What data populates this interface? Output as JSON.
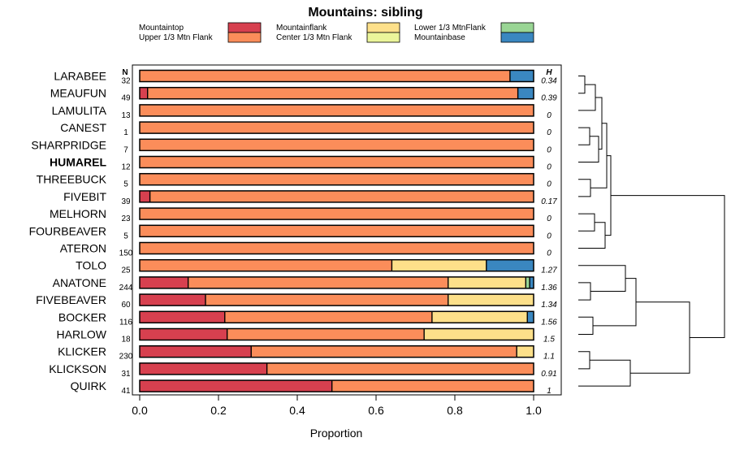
{
  "chart_data": {
    "type": "bar",
    "orientation": "horizontal",
    "stacked": true,
    "title": "Mountains: sibling",
    "xlabel": "Proportion",
    "xlim": [
      0,
      1
    ],
    "x_ticks": [
      "0.0",
      "0.2",
      "0.4",
      "0.6",
      "0.8",
      "1.0"
    ],
    "n_header": "N",
    "h_header": "H",
    "legend": [
      {
        "name": "Mountaintop",
        "color": "#d7404f"
      },
      {
        "name": "Upper 1/3 Mtn Flank",
        "color": "#fb8d5a"
      },
      {
        "name": "Mountainflank",
        "color": "#fde08a"
      },
      {
        "name": "Center 1/3 Mtn Flank",
        "color": "#ebf59a"
      },
      {
        "name": "Lower 1/3 MtnFlank",
        "color": "#99d594"
      },
      {
        "name": "Mountainbase",
        "color": "#3a87c0"
      }
    ],
    "series_order": [
      "Mountaintop",
      "Upper 1/3 Mtn Flank",
      "Mountainflank",
      "Center 1/3 Mtn Flank",
      "Lower 1/3 MtnFlank",
      "Mountainbase"
    ],
    "rows": [
      {
        "label": "LARABEE",
        "n": "32",
        "h": "0.34",
        "bold": false,
        "values": [
          0,
          0.94,
          0,
          0,
          0,
          0.06
        ]
      },
      {
        "label": "MEAUFUN",
        "n": "49",
        "h": "0.39",
        "bold": false,
        "values": [
          0.02,
          0.94,
          0,
          0,
          0,
          0.04
        ]
      },
      {
        "label": "LAMULITA",
        "n": "13",
        "h": "0",
        "bold": false,
        "values": [
          0,
          1,
          0,
          0,
          0,
          0
        ]
      },
      {
        "label": "CANEST",
        "n": "1",
        "h": "0",
        "bold": false,
        "values": [
          0,
          1,
          0,
          0,
          0,
          0
        ]
      },
      {
        "label": "SHARPRIDGE",
        "n": "7",
        "h": "0",
        "bold": false,
        "values": [
          0,
          1,
          0,
          0,
          0,
          0
        ]
      },
      {
        "label": "HUMAREL",
        "n": "12",
        "h": "0",
        "bold": true,
        "values": [
          0,
          1,
          0,
          0,
          0,
          0
        ]
      },
      {
        "label": "THREEBUCK",
        "n": "5",
        "h": "0",
        "bold": false,
        "values": [
          0,
          1,
          0,
          0,
          0,
          0
        ]
      },
      {
        "label": "FIVEBIT",
        "n": "39",
        "h": "0.17",
        "bold": false,
        "values": [
          0.026,
          0.974,
          0,
          0,
          0,
          0
        ]
      },
      {
        "label": "MELHORN",
        "n": "23",
        "h": "0",
        "bold": false,
        "values": [
          0,
          1,
          0,
          0,
          0,
          0
        ]
      },
      {
        "label": "FOURBEAVER",
        "n": "5",
        "h": "0",
        "bold": false,
        "values": [
          0,
          1,
          0,
          0,
          0,
          0
        ]
      },
      {
        "label": "ATERON",
        "n": "150",
        "h": "0",
        "bold": false,
        "values": [
          0,
          1,
          0,
          0,
          0,
          0
        ]
      },
      {
        "label": "TOLO",
        "n": "25",
        "h": "1.27",
        "bold": false,
        "values": [
          0,
          0.64,
          0.24,
          0,
          0,
          0.12
        ]
      },
      {
        "label": "ANATONE",
        "n": "244",
        "h": "1.36",
        "bold": false,
        "values": [
          0.123,
          0.66,
          0.197,
          0,
          0.01,
          0.01
        ]
      },
      {
        "label": "FIVEBEAVER",
        "n": "60",
        "h": "1.34",
        "bold": false,
        "values": [
          0.167,
          0.616,
          0.217,
          0,
          0,
          0
        ]
      },
      {
        "label": "BOCKER",
        "n": "116",
        "h": "1.56",
        "bold": false,
        "values": [
          0.216,
          0.526,
          0.242,
          0,
          0,
          0.016
        ]
      },
      {
        "label": "HARLOW",
        "n": "18",
        "h": "1.5",
        "bold": false,
        "values": [
          0.222,
          0.5,
          0.278,
          0,
          0,
          0
        ]
      },
      {
        "label": "KLICKER",
        "n": "230",
        "h": "1.1",
        "bold": false,
        "values": [
          0.283,
          0.674,
          0.043,
          0,
          0,
          0
        ]
      },
      {
        "label": "KLICKSON",
        "n": "31",
        "h": "0.91",
        "bold": false,
        "values": [
          0.323,
          0.677,
          0,
          0,
          0,
          0
        ]
      },
      {
        "label": "QUIRK",
        "n": "41",
        "h": "1",
        "bold": false,
        "values": [
          0.488,
          0.512,
          0,
          0,
          0,
          0
        ]
      }
    ]
  }
}
